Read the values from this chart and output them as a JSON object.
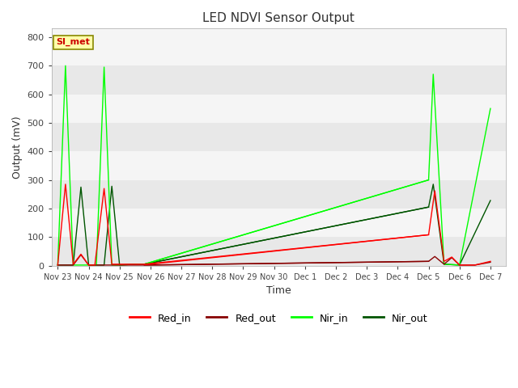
{
  "title": "LED NDVI Sensor Output",
  "xlabel": "Time",
  "ylabel": "Output (mV)",
  "ylim": [
    0,
    830
  ],
  "plot_bg_color": "#e8e8e8",
  "plot_bg_color2": "#f5f5f5",
  "annotation_text": "SI_met",
  "annotation_bg": "#ffffaa",
  "annotation_border": "#888800",
  "legend_labels": [
    "Red_in",
    "Red_out",
    "Nir_in",
    "Nir_out"
  ],
  "line_colors": {
    "Red_in": "#ff0000",
    "Red_out": "#880000",
    "Nir_in": "#00ff00",
    "Nir_out": "#005500"
  },
  "x_tick_labels": [
    "Nov 23",
    "Nov 24",
    "Nov 25",
    "Nov 26",
    "Nov 27",
    "Nov 28",
    "Nov 29",
    "Nov 30",
    "Dec 1",
    "Dec 2",
    "Dec 3",
    "Dec 4",
    "Dec 5",
    "Dec 6",
    "Dec 7"
  ],
  "x_tick_positions": [
    0,
    1,
    2,
    3,
    4,
    5,
    6,
    7,
    8,
    9,
    10,
    11,
    12,
    13,
    14
  ],
  "yticks": [
    0,
    100,
    200,
    300,
    400,
    500,
    600,
    700,
    800
  ],
  "series": {
    "Red_in": {
      "x": [
        0,
        0.25,
        0.5,
        0.75,
        1.0,
        1.2,
        1.5,
        1.75,
        2.0,
        2.5,
        3.0,
        12.0,
        12.2,
        12.5,
        12.75,
        13.0,
        13.5,
        14.0
      ],
      "y": [
        2,
        285,
        5,
        40,
        2,
        2,
        270,
        5,
        5,
        5,
        5,
        108,
        262,
        15,
        30,
        2,
        2,
        15
      ]
    },
    "Red_out": {
      "x": [
        0,
        0.25,
        0.5,
        0.75,
        1.0,
        1.2,
        1.5,
        1.75,
        2.0,
        2.5,
        3.0,
        12.0,
        12.2,
        12.5,
        12.75,
        13.0,
        13.5,
        14.0
      ],
      "y": [
        2,
        2,
        2,
        38,
        2,
        2,
        2,
        2,
        2,
        2,
        2,
        15,
        32,
        5,
        28,
        2,
        2,
        12
      ]
    },
    "Nir_in": {
      "x": [
        0,
        0.25,
        0.5,
        0.75,
        1.0,
        1.25,
        1.5,
        1.75,
        2.0,
        2.5,
        2.8,
        12.0,
        12.15,
        12.5,
        13.0,
        14.0
      ],
      "y": [
        2,
        700,
        2,
        2,
        2,
        2,
        695,
        2,
        2,
        5,
        5,
        300,
        670,
        5,
        2,
        550
      ]
    },
    "Nir_out": {
      "x": [
        0,
        0.25,
        0.5,
        0.75,
        1.0,
        1.25,
        1.5,
        1.75,
        2.0,
        2.5,
        2.8,
        12.0,
        12.15,
        12.5,
        13.0,
        14.0
      ],
      "y": [
        2,
        2,
        2,
        275,
        2,
        2,
        2,
        278,
        2,
        5,
        5,
        205,
        285,
        5,
        2,
        228
      ]
    }
  },
  "nir_in_ramp": {
    "x": [
      2.8,
      12.0
    ],
    "y": [
      5,
      300
    ]
  },
  "nir_out_ramp": {
    "x": [
      2.8,
      12.0
    ],
    "y": [
      5,
      205
    ]
  },
  "red_in_ramp": {
    "x": [
      2.8,
      12.0
    ],
    "y": [
      5,
      108
    ]
  },
  "red_out_ramp": {
    "x": [
      2.8,
      12.0
    ],
    "y": [
      2,
      15
    ]
  }
}
